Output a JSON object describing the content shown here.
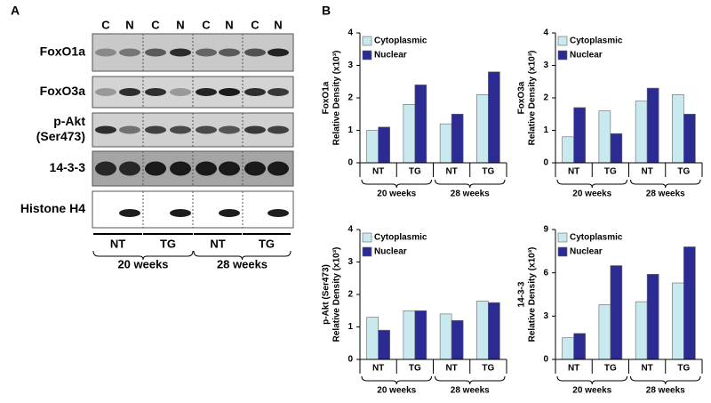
{
  "panel_labels": [
    "A",
    "B"
  ],
  "blot": {
    "lane_labels": [
      "C",
      "N",
      "C",
      "N",
      "C",
      "N",
      "C",
      "N"
    ],
    "proteins": [
      [
        "FoxO1a"
      ],
      [
        "FoxO3a"
      ],
      [
        "p-Akt",
        "(Ser473)"
      ],
      [
        "14-3-3"
      ],
      [
        "Histone H4"
      ]
    ],
    "groups": [
      "NT",
      "TG",
      "NT",
      "TG"
    ],
    "times": [
      "20 weeks",
      "28 weeks"
    ]
  },
  "chart_data": [
    {
      "type": "bar",
      "ylabel": [
        "FoxO1a",
        "Relative Density (x10³)"
      ],
      "categories": [
        "NT",
        "TG",
        "NT",
        "TG"
      ],
      "groups": [
        "20 weeks",
        "28 weeks"
      ],
      "series": [
        {
          "name": "Cytoplasmic",
          "color": "#c8e9ee",
          "values": [
            1.0,
            1.8,
            1.2,
            2.1
          ]
        },
        {
          "name": "Nuclear",
          "color": "#2b2b93",
          "values": [
            1.1,
            2.4,
            1.5,
            2.8
          ]
        }
      ],
      "ylim": [
        0,
        4
      ],
      "yticks": [
        0,
        1,
        2,
        3,
        4
      ]
    },
    {
      "type": "bar",
      "ylabel": [
        "FoxO3a",
        "Relative Density (x10³)"
      ],
      "categories": [
        "NT",
        "TG",
        "NT",
        "TG"
      ],
      "groups": [
        "20 weeks",
        "28 weeks"
      ],
      "series": [
        {
          "name": "Cytoplasmic",
          "color": "#c8e9ee",
          "values": [
            0.8,
            1.6,
            1.9,
            2.1
          ]
        },
        {
          "name": "Nuclear",
          "color": "#2b2b93",
          "values": [
            1.7,
            0.9,
            2.3,
            1.5
          ]
        }
      ],
      "ylim": [
        0,
        4
      ],
      "yticks": [
        0,
        1,
        2,
        3,
        4
      ]
    },
    {
      "type": "bar",
      "ylabel": [
        "p-Akt (Ser473)",
        "Relative Density (x10³)"
      ],
      "categories": [
        "NT",
        "TG",
        "NT",
        "TG"
      ],
      "groups": [
        "20 weeks",
        "28 weeks"
      ],
      "series": [
        {
          "name": "Cytoplasmic",
          "color": "#c8e9ee",
          "values": [
            1.3,
            1.5,
            1.4,
            1.8
          ]
        },
        {
          "name": "Nuclear",
          "color": "#2b2b93",
          "values": [
            0.9,
            1.5,
            1.2,
            1.75
          ]
        }
      ],
      "ylim": [
        0,
        4
      ],
      "yticks": [
        0,
        1,
        2,
        3,
        4
      ]
    },
    {
      "type": "bar",
      "ylabel": [
        "14-3-3",
        "Relative Density (x10³)"
      ],
      "categories": [
        "NT",
        "TG",
        "NT",
        "TG"
      ],
      "groups": [
        "20 weeks",
        "28 weeks"
      ],
      "series": [
        {
          "name": "Cytoplasmic",
          "color": "#c8e9ee",
          "values": [
            1.5,
            3.8,
            4.0,
            5.3
          ]
        },
        {
          "name": "Nuclear",
          "color": "#2b2b93",
          "values": [
            1.8,
            6.5,
            5.9,
            7.8
          ]
        }
      ],
      "ylim": [
        0,
        9
      ],
      "yticks": [
        0,
        3,
        6,
        9
      ]
    }
  ]
}
